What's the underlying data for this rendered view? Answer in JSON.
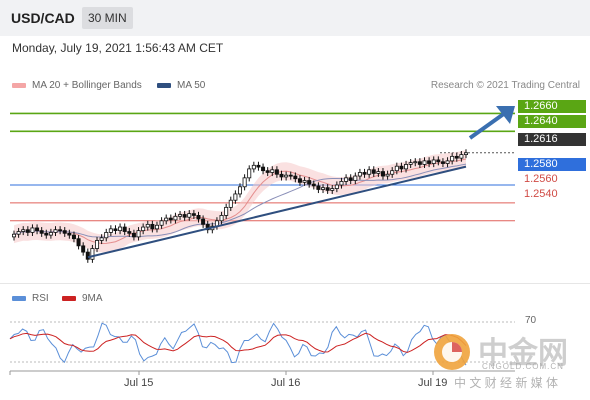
{
  "header": {
    "symbol": "USD/CAD",
    "timeframe": "30 MIN"
  },
  "datetime": "Monday, July 19, 2021 1:56:43 AM CET",
  "legend": [
    {
      "label": "MA 20 + Bollinger Bands",
      "color": "#f4a6a6"
    },
    {
      "label": "MA 50",
      "color": "#2f4f7f"
    }
  ],
  "credit": "Research © 2021 Trading Central",
  "levels": [
    {
      "value": "1.2660",
      "kind": "resistance",
      "color": "#5aa614"
    },
    {
      "value": "1.2640",
      "kind": "resistance",
      "color": "#5aa614"
    },
    {
      "value": "1.2616",
      "kind": "last",
      "color": "#333333"
    },
    {
      "value": "1.2580",
      "kind": "pivot",
      "color": "#2f6fdc"
    },
    {
      "value": "1.2560",
      "kind": "support",
      "color": "#e0605a"
    },
    {
      "value": "1.2540",
      "kind": "support",
      "color": "#e0605a"
    }
  ],
  "rsi_legend": [
    {
      "label": "RSI",
      "color": "#5b8fd8"
    },
    {
      "label": "9MA",
      "color": "#cc2222"
    }
  ],
  "rsi_level": "70",
  "x_labels": [
    "Jul 15",
    "Jul 16",
    "Jul 19"
  ],
  "watermark": {
    "brand": "中金网",
    "domain": "CNGOLD.COM.CN",
    "tagline": "中 文 财 经 新 媒 体"
  },
  "chart_data": {
    "type": "candlestick",
    "title": "USD/CAD 30 MIN",
    "ylim": [
      1.2485,
      1.2675
    ],
    "x_categories": [
      "Jul 15",
      "Jul 16",
      "Jul 19"
    ],
    "candles_close_approx": [
      1.2525,
      1.2528,
      1.253,
      1.2527,
      1.2532,
      1.2529,
      1.2526,
      1.2524,
      1.2527,
      1.253,
      1.2529,
      1.2526,
      1.2524,
      1.252,
      1.2512,
      1.2505,
      1.2497,
      1.2509,
      1.2518,
      1.2521,
      1.2527,
      1.2531,
      1.2529,
      1.2533,
      1.2528,
      1.2526,
      1.2522,
      1.2529,
      1.2533,
      1.2536,
      1.2531,
      1.2535,
      1.254,
      1.2543,
      1.2541,
      1.2545,
      1.2547,
      1.2544,
      1.2548,
      1.2546,
      1.2542,
      1.2536,
      1.253,
      1.2534,
      1.254,
      1.2546,
      1.2555,
      1.2563,
      1.257,
      1.2578,
      1.2588,
      1.2598,
      1.2602,
      1.26,
      1.2596,
      1.2594,
      1.2597,
      1.2592,
      1.2589,
      1.2591,
      1.259,
      1.2587,
      1.2583,
      1.2585,
      1.2581,
      1.2579,
      1.2575,
      1.2577,
      1.2574,
      1.2576,
      1.258,
      1.2584,
      1.2588,
      1.2585,
      1.259,
      1.2594,
      1.2592,
      1.2597,
      1.2593,
      1.2595,
      1.259,
      1.2592,
      1.2596,
      1.2601,
      1.2598,
      1.2603,
      1.2605,
      1.2606,
      1.2603,
      1.2607,
      1.2604,
      1.2608,
      1.2606,
      1.2604,
      1.2607,
      1.2612,
      1.261,
      1.2614,
      1.2616
    ],
    "levels": [
      1.266,
      1.264,
      1.2616,
      1.258,
      1.256,
      1.254
    ],
    "trendline": {
      "from": 1.2497,
      "to": 1.2605
    },
    "rsi": {
      "level": 70
    }
  }
}
